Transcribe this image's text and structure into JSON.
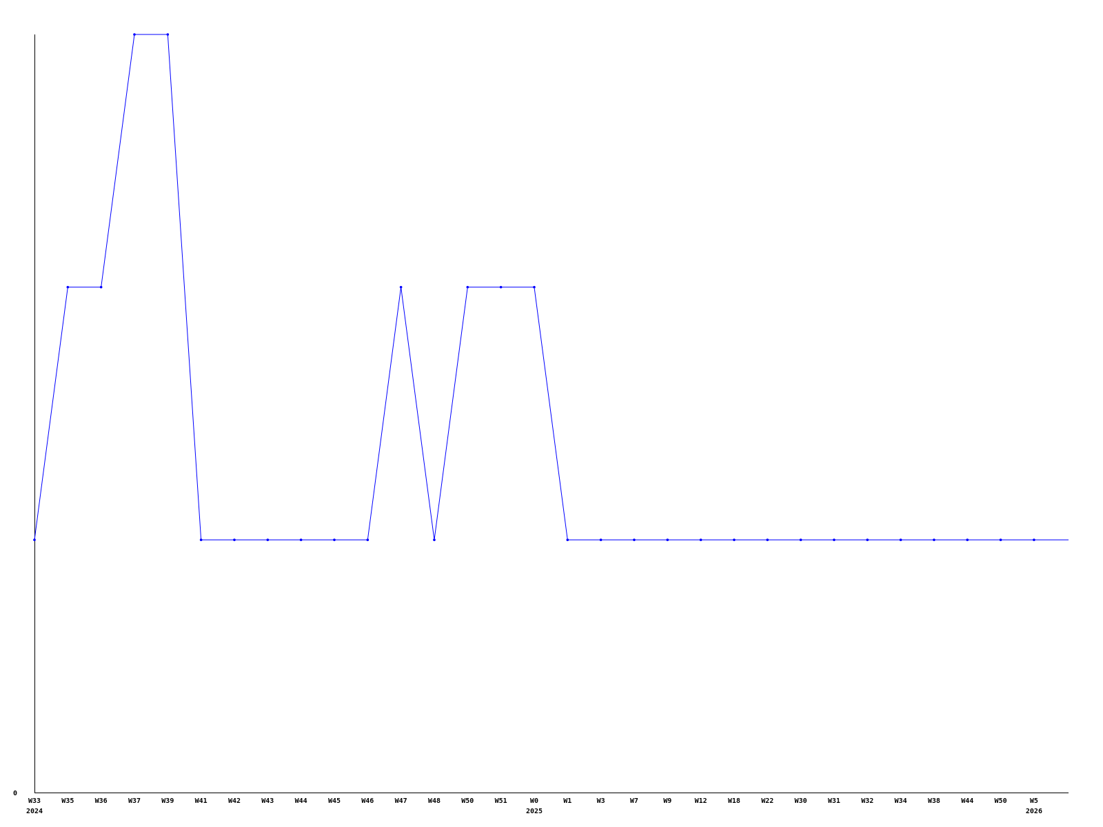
{
  "chart_data": {
    "type": "line",
    "title": "",
    "xlabel": "",
    "ylabel": "",
    "ylim": [
      0,
      3
    ],
    "y_tick_labels": [
      "0"
    ],
    "grid": false,
    "legend": "none",
    "line_color": "#0000ff",
    "axis_color": "#000000",
    "categories": [
      {
        "label": "W33",
        "year": "2024"
      },
      {
        "label": "W35"
      },
      {
        "label": "W36"
      },
      {
        "label": "W37"
      },
      {
        "label": "W39"
      },
      {
        "label": "W41"
      },
      {
        "label": "W42"
      },
      {
        "label": "W43"
      },
      {
        "label": "W44"
      },
      {
        "label": "W45"
      },
      {
        "label": "W46"
      },
      {
        "label": "W47"
      },
      {
        "label": "W48"
      },
      {
        "label": "W50"
      },
      {
        "label": "W51"
      },
      {
        "label": "W0",
        "year": "2025"
      },
      {
        "label": "W1"
      },
      {
        "label": "W3"
      },
      {
        "label": "W7"
      },
      {
        "label": "W9"
      },
      {
        "label": "W12"
      },
      {
        "label": "W18"
      },
      {
        "label": "W22"
      },
      {
        "label": "W30"
      },
      {
        "label": "W31"
      },
      {
        "label": "W32"
      },
      {
        "label": "W34"
      },
      {
        "label": "W38"
      },
      {
        "label": "W44"
      },
      {
        "label": "W50"
      },
      {
        "label": "W5",
        "year": "2026"
      }
    ],
    "values": [
      1,
      2,
      2,
      3,
      3,
      1,
      1,
      1,
      1,
      1,
      1,
      2,
      1,
      2,
      2,
      2,
      1,
      1,
      1,
      1,
      1,
      1,
      1,
      1,
      1,
      1,
      1,
      1,
      1,
      1,
      1
    ]
  }
}
